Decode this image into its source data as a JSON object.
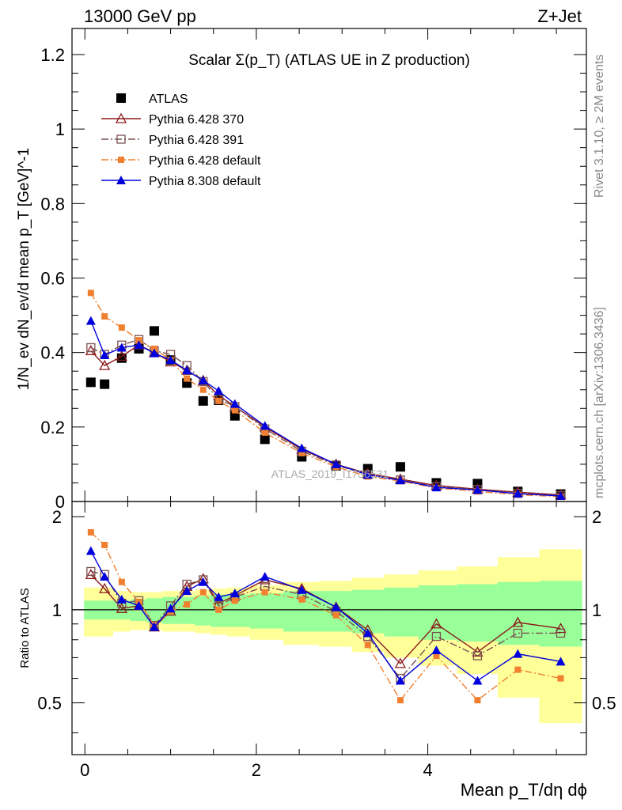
{
  "header": {
    "energy_label": "13000 GeV pp",
    "process_label": "Z+Jet"
  },
  "side_text": {
    "rivet": "Rivet 3.1.10, ≥ 2M events",
    "mcplots": "mcplots.cern.ch [arXiv:1306.3436]"
  },
  "chart_data": {
    "type": "line",
    "title": "Scalar Σ(p_T) (ATLAS UE in Z production)",
    "watermark": "ATLAS_2019_I1736531",
    "xlabel": "Mean p_T/dη dϕ",
    "ylabel": "1/N_ev dN_ev/d mean p_T [GeV]^-1",
    "ratio_ylabel": "Ratio to ATLAS",
    "xlim": [
      -0.15,
      5.85
    ],
    "ylim": [
      0,
      1.27
    ],
    "ratio_ylim": [
      0.34,
      2.24
    ],
    "x_ticks": [
      0,
      2,
      4
    ],
    "y_ticks": [
      0,
      0.2,
      0.4,
      0.6,
      0.8,
      1,
      1.2
    ],
    "y_tick_labels": [
      "0",
      "0.2",
      "0.4",
      "0.6",
      "0.8",
      "1",
      "1.2"
    ],
    "ratio_ticks": [
      0.5,
      1,
      2
    ],
    "x": [
      0.07,
      0.23,
      0.43,
      0.63,
      0.81,
      1.0,
      1.19,
      1.38,
      1.56,
      1.75,
      2.1,
      2.53,
      2.93,
      3.3,
      3.68,
      4.1,
      4.58,
      5.05,
      5.55
    ],
    "series": [
      {
        "name": "ATLAS",
        "color": "#000000",
        "marker": "square-filled",
        "line": "none",
        "values": [
          0.32,
          0.315,
          0.385,
          0.41,
          0.458,
          0.38,
          0.318,
          0.27,
          0.272,
          0.23,
          0.167,
          0.12,
          0.096,
          0.088,
          0.093,
          0.05,
          0.048,
          0.027,
          0.02
        ],
        "band_green": [
          0.93,
          0.93,
          0.93,
          0.92,
          0.91,
          0.9,
          0.9,
          0.89,
          0.88,
          0.88,
          0.87,
          0.85,
          0.85,
          0.84,
          0.82,
          0.8,
          0.79,
          0.77,
          0.76
        ],
        "band_yellow": [
          0.82,
          0.82,
          0.85,
          0.86,
          0.86,
          0.85,
          0.85,
          0.84,
          0.83,
          0.82,
          0.8,
          0.77,
          0.76,
          0.73,
          0.7,
          0.66,
          0.62,
          0.52,
          0.43
        ]
      },
      {
        "name": "Pythia 6.428 370",
        "color": "#8b1a1a",
        "marker": "triangle-open",
        "line": "solid",
        "values": [
          0.405,
          0.365,
          0.39,
          0.42,
          0.4,
          0.375,
          0.352,
          0.325,
          0.285,
          0.255,
          0.2,
          0.14,
          0.1,
          0.075,
          0.06,
          0.043,
          0.033,
          0.025,
          0.018
        ],
        "ratio": [
          1.3,
          1.17,
          1.01,
          1.03,
          0.88,
          0.99,
          1.19,
          1.26,
          1.05,
          1.11,
          1.25,
          1.17,
          1.02,
          0.86,
          0.67,
          0.9,
          0.73,
          0.91,
          0.87
        ]
      },
      {
        "name": "Pythia 6.428 391",
        "color": "#7a5050",
        "marker": "square-open",
        "line": "dashdot",
        "values": [
          0.413,
          0.395,
          0.42,
          0.435,
          0.405,
          0.395,
          0.365,
          0.322,
          0.275,
          0.255,
          0.195,
          0.135,
          0.098,
          0.072,
          0.058,
          0.04,
          0.032,
          0.022,
          0.016
        ],
        "ratio": [
          1.33,
          1.3,
          1.05,
          1.07,
          0.89,
          1.03,
          1.21,
          1.25,
          1.03,
          1.1,
          1.19,
          1.12,
          0.99,
          0.82,
          0.6,
          0.82,
          0.71,
          0.84,
          0.84
        ]
      },
      {
        "name": "Pythia 6.428 default",
        "color": "#f08030",
        "marker": "square-small-filled",
        "line": "dashdot",
        "values": [
          0.56,
          0.497,
          0.467,
          0.433,
          0.41,
          0.38,
          0.33,
          0.3,
          0.27,
          0.245,
          0.185,
          0.13,
          0.093,
          0.067,
          0.055,
          0.036,
          0.027,
          0.018,
          0.013
        ],
        "ratio": [
          1.78,
          1.62,
          1.23,
          1.06,
          0.89,
          0.99,
          1.04,
          1.14,
          1.0,
          1.07,
          1.14,
          1.08,
          0.96,
          0.77,
          0.51,
          0.71,
          0.51,
          0.64,
          0.6
        ]
      },
      {
        "name": "Pythia 8.308 default",
        "color": "#0000dd",
        "marker": "triangle-filled",
        "line": "solid",
        "values": [
          0.485,
          0.393,
          0.413,
          0.42,
          0.398,
          0.38,
          0.352,
          0.325,
          0.297,
          0.262,
          0.203,
          0.143,
          0.1,
          0.072,
          0.057,
          0.038,
          0.031,
          0.021,
          0.015
        ],
        "ratio": [
          1.55,
          1.28,
          1.08,
          1.03,
          0.88,
          1.01,
          1.15,
          1.23,
          1.1,
          1.13,
          1.28,
          1.16,
          1.02,
          0.84,
          0.59,
          0.74,
          0.59,
          0.72,
          0.68
        ]
      }
    ]
  }
}
